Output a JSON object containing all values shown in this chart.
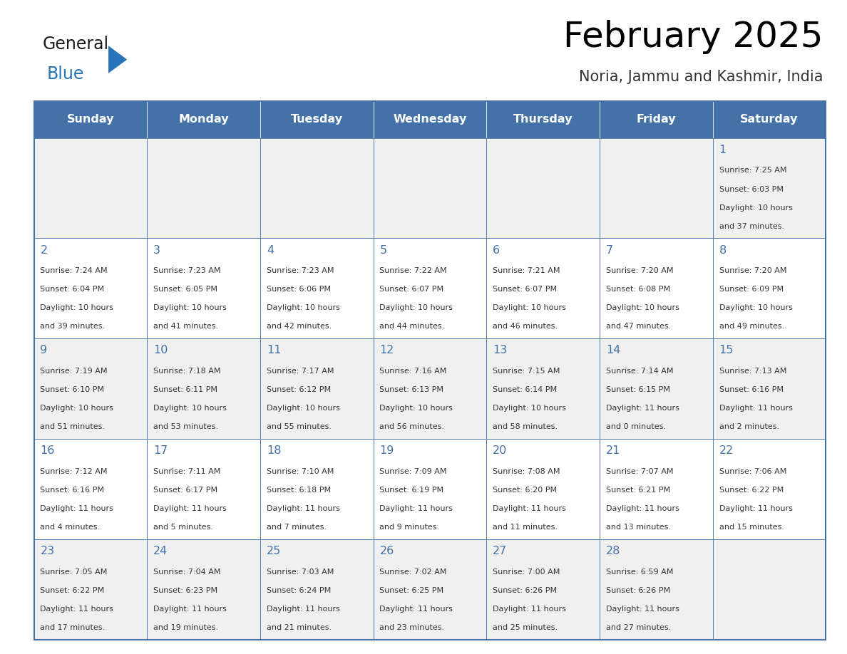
{
  "title": "February 2025",
  "subtitle": "Noria, Jammu and Kashmir, India",
  "days_of_week": [
    "Sunday",
    "Monday",
    "Tuesday",
    "Wednesday",
    "Thursday",
    "Friday",
    "Saturday"
  ],
  "header_bg": "#4472a8",
  "header_text": "#ffffff",
  "row_bg_odd": "#f0f0f0",
  "row_bg_even": "#ffffff",
  "cell_border": "#4472a8",
  "day_num_color": "#4472a8",
  "info_color": "#333333",
  "title_color": "#000000",
  "subtitle_color": "#333333",
  "logo_general_color": "#1a1a1a",
  "logo_blue_color": "#2874b8",
  "calendar_data": [
    [
      null,
      null,
      null,
      null,
      null,
      null,
      {
        "day": 1,
        "sunrise": "7:25 AM",
        "sunset": "6:03 PM",
        "daylight_l1": "Daylight: 10 hours",
        "daylight_l2": "and 37 minutes."
      }
    ],
    [
      {
        "day": 2,
        "sunrise": "7:24 AM",
        "sunset": "6:04 PM",
        "daylight_l1": "Daylight: 10 hours",
        "daylight_l2": "and 39 minutes."
      },
      {
        "day": 3,
        "sunrise": "7:23 AM",
        "sunset": "6:05 PM",
        "daylight_l1": "Daylight: 10 hours",
        "daylight_l2": "and 41 minutes."
      },
      {
        "day": 4,
        "sunrise": "7:23 AM",
        "sunset": "6:06 PM",
        "daylight_l1": "Daylight: 10 hours",
        "daylight_l2": "and 42 minutes."
      },
      {
        "day": 5,
        "sunrise": "7:22 AM",
        "sunset": "6:07 PM",
        "daylight_l1": "Daylight: 10 hours",
        "daylight_l2": "and 44 minutes."
      },
      {
        "day": 6,
        "sunrise": "7:21 AM",
        "sunset": "6:07 PM",
        "daylight_l1": "Daylight: 10 hours",
        "daylight_l2": "and 46 minutes."
      },
      {
        "day": 7,
        "sunrise": "7:20 AM",
        "sunset": "6:08 PM",
        "daylight_l1": "Daylight: 10 hours",
        "daylight_l2": "and 47 minutes."
      },
      {
        "day": 8,
        "sunrise": "7:20 AM",
        "sunset": "6:09 PM",
        "daylight_l1": "Daylight: 10 hours",
        "daylight_l2": "and 49 minutes."
      }
    ],
    [
      {
        "day": 9,
        "sunrise": "7:19 AM",
        "sunset": "6:10 PM",
        "daylight_l1": "Daylight: 10 hours",
        "daylight_l2": "and 51 minutes."
      },
      {
        "day": 10,
        "sunrise": "7:18 AM",
        "sunset": "6:11 PM",
        "daylight_l1": "Daylight: 10 hours",
        "daylight_l2": "and 53 minutes."
      },
      {
        "day": 11,
        "sunrise": "7:17 AM",
        "sunset": "6:12 PM",
        "daylight_l1": "Daylight: 10 hours",
        "daylight_l2": "and 55 minutes."
      },
      {
        "day": 12,
        "sunrise": "7:16 AM",
        "sunset": "6:13 PM",
        "daylight_l1": "Daylight: 10 hours",
        "daylight_l2": "and 56 minutes."
      },
      {
        "day": 13,
        "sunrise": "7:15 AM",
        "sunset": "6:14 PM",
        "daylight_l1": "Daylight: 10 hours",
        "daylight_l2": "and 58 minutes."
      },
      {
        "day": 14,
        "sunrise": "7:14 AM",
        "sunset": "6:15 PM",
        "daylight_l1": "Daylight: 11 hours",
        "daylight_l2": "and 0 minutes."
      },
      {
        "day": 15,
        "sunrise": "7:13 AM",
        "sunset": "6:16 PM",
        "daylight_l1": "Daylight: 11 hours",
        "daylight_l2": "and 2 minutes."
      }
    ],
    [
      {
        "day": 16,
        "sunrise": "7:12 AM",
        "sunset": "6:16 PM",
        "daylight_l1": "Daylight: 11 hours",
        "daylight_l2": "and 4 minutes."
      },
      {
        "day": 17,
        "sunrise": "7:11 AM",
        "sunset": "6:17 PM",
        "daylight_l1": "Daylight: 11 hours",
        "daylight_l2": "and 5 minutes."
      },
      {
        "day": 18,
        "sunrise": "7:10 AM",
        "sunset": "6:18 PM",
        "daylight_l1": "Daylight: 11 hours",
        "daylight_l2": "and 7 minutes."
      },
      {
        "day": 19,
        "sunrise": "7:09 AM",
        "sunset": "6:19 PM",
        "daylight_l1": "Daylight: 11 hours",
        "daylight_l2": "and 9 minutes."
      },
      {
        "day": 20,
        "sunrise": "7:08 AM",
        "sunset": "6:20 PM",
        "daylight_l1": "Daylight: 11 hours",
        "daylight_l2": "and 11 minutes."
      },
      {
        "day": 21,
        "sunrise": "7:07 AM",
        "sunset": "6:21 PM",
        "daylight_l1": "Daylight: 11 hours",
        "daylight_l2": "and 13 minutes."
      },
      {
        "day": 22,
        "sunrise": "7:06 AM",
        "sunset": "6:22 PM",
        "daylight_l1": "Daylight: 11 hours",
        "daylight_l2": "and 15 minutes."
      }
    ],
    [
      {
        "day": 23,
        "sunrise": "7:05 AM",
        "sunset": "6:22 PM",
        "daylight_l1": "Daylight: 11 hours",
        "daylight_l2": "and 17 minutes."
      },
      {
        "day": 24,
        "sunrise": "7:04 AM",
        "sunset": "6:23 PM",
        "daylight_l1": "Daylight: 11 hours",
        "daylight_l2": "and 19 minutes."
      },
      {
        "day": 25,
        "sunrise": "7:03 AM",
        "sunset": "6:24 PM",
        "daylight_l1": "Daylight: 11 hours",
        "daylight_l2": "and 21 minutes."
      },
      {
        "day": 26,
        "sunrise": "7:02 AM",
        "sunset": "6:25 PM",
        "daylight_l1": "Daylight: 11 hours",
        "daylight_l2": "and 23 minutes."
      },
      {
        "day": 27,
        "sunrise": "7:00 AM",
        "sunset": "6:26 PM",
        "daylight_l1": "Daylight: 11 hours",
        "daylight_l2": "and 25 minutes."
      },
      {
        "day": 28,
        "sunrise": "6:59 AM",
        "sunset": "6:26 PM",
        "daylight_l1": "Daylight: 11 hours",
        "daylight_l2": "and 27 minutes."
      },
      null
    ]
  ]
}
